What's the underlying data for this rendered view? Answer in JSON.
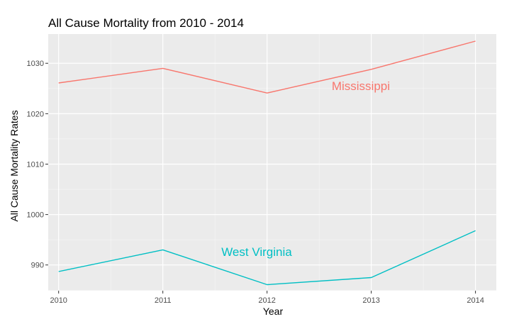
{
  "chart_data": {
    "type": "line",
    "title": "All Cause Mortality from 2010 - 2014",
    "xlabel": "Year",
    "ylabel": "All Cause Mortality Rates",
    "x": [
      2010,
      2011,
      2012,
      2013,
      2014
    ],
    "xlim": [
      2009.9,
      2014.2
    ],
    "ylim": [
      984.9,
      1035.8
    ],
    "y_ticks": [
      990,
      1000,
      1010,
      1020,
      1030
    ],
    "grid": true,
    "legend": "none",
    "background": "#ebebeb",
    "series": [
      {
        "name": "Mississippi",
        "color": "#f8766d",
        "values": [
          1026.1,
          1029.0,
          1024.1,
          1028.8,
          1034.4
        ],
        "label_at": [
          2012.9,
          1024.7
        ]
      },
      {
        "name": "West Virginia",
        "color": "#00bfc4",
        "values": [
          988.7,
          993.0,
          986.1,
          987.5,
          996.8
        ],
        "label_at": [
          2011.9,
          991.8
        ]
      }
    ]
  }
}
